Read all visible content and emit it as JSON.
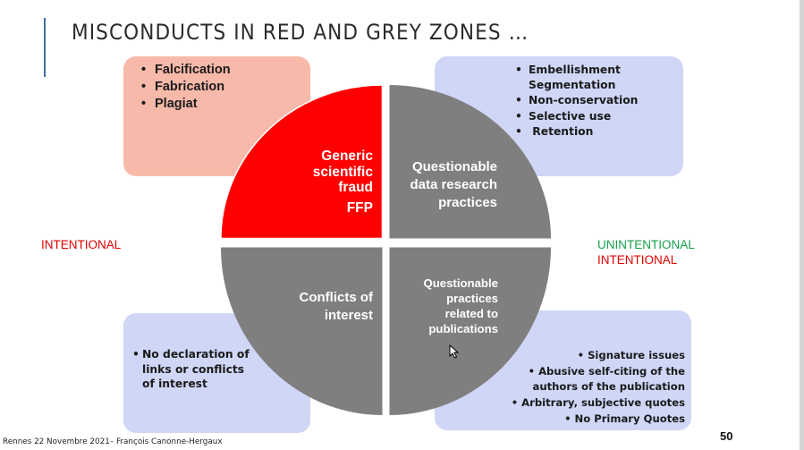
{
  "slide": {
    "title": "MISCONDUCTS IN RED AND GREY ZONES …",
    "footer": "Rennes 22 Novembre 2021– François Canonne-Hergaux",
    "page_number": "50"
  },
  "side_labels": {
    "left": "INTENTIONAL",
    "right_top": "UNINTENTIONAL",
    "right_bottom": "INTENTIONAL"
  },
  "quadrants": {
    "top_left": {
      "lines": [
        "Generic",
        "scientific",
        "fraud"
      ],
      "extra": "FFP",
      "color": "#ff0000"
    },
    "top_right": {
      "lines": [
        "Questionable",
        "data research",
        "practices"
      ],
      "color": "#7f7f7f"
    },
    "bottom_left": {
      "lines": [
        "Conflicts of",
        "interest"
      ],
      "color": "#7f7f7f"
    },
    "bottom_right": {
      "lines": [
        "Questionable",
        "practices",
        "related to",
        "publications"
      ],
      "color": "#7f7f7f"
    }
  },
  "boxes": {
    "ffp": {
      "items": [
        "Falcification",
        "Fabrication",
        "Plagiat"
      ],
      "color": "#f7b9a9"
    },
    "data": {
      "items": [
        "Embellishment\nSegmentation",
        "Non-conservation",
        "Selective use",
        " Retention"
      ],
      "color": "#cfd6f6"
    },
    "coi": {
      "items": [
        "No declaration of\nlinks or conflicts\nof interest"
      ],
      "color": "#cfd6f6"
    },
    "pub": {
      "items": [
        "• Signature issues",
        "• Abusive self-citing of the\nauthors of the publication",
        "• Arbitrary, subjective quotes",
        "• No Primary Quotes"
      ],
      "color": "#cfd6f6"
    }
  },
  "colors": {
    "intentional": "#e00000",
    "unintentional": "#15a04a",
    "title": "#2b2b2b",
    "accent_bar": "#3f6f9f"
  }
}
